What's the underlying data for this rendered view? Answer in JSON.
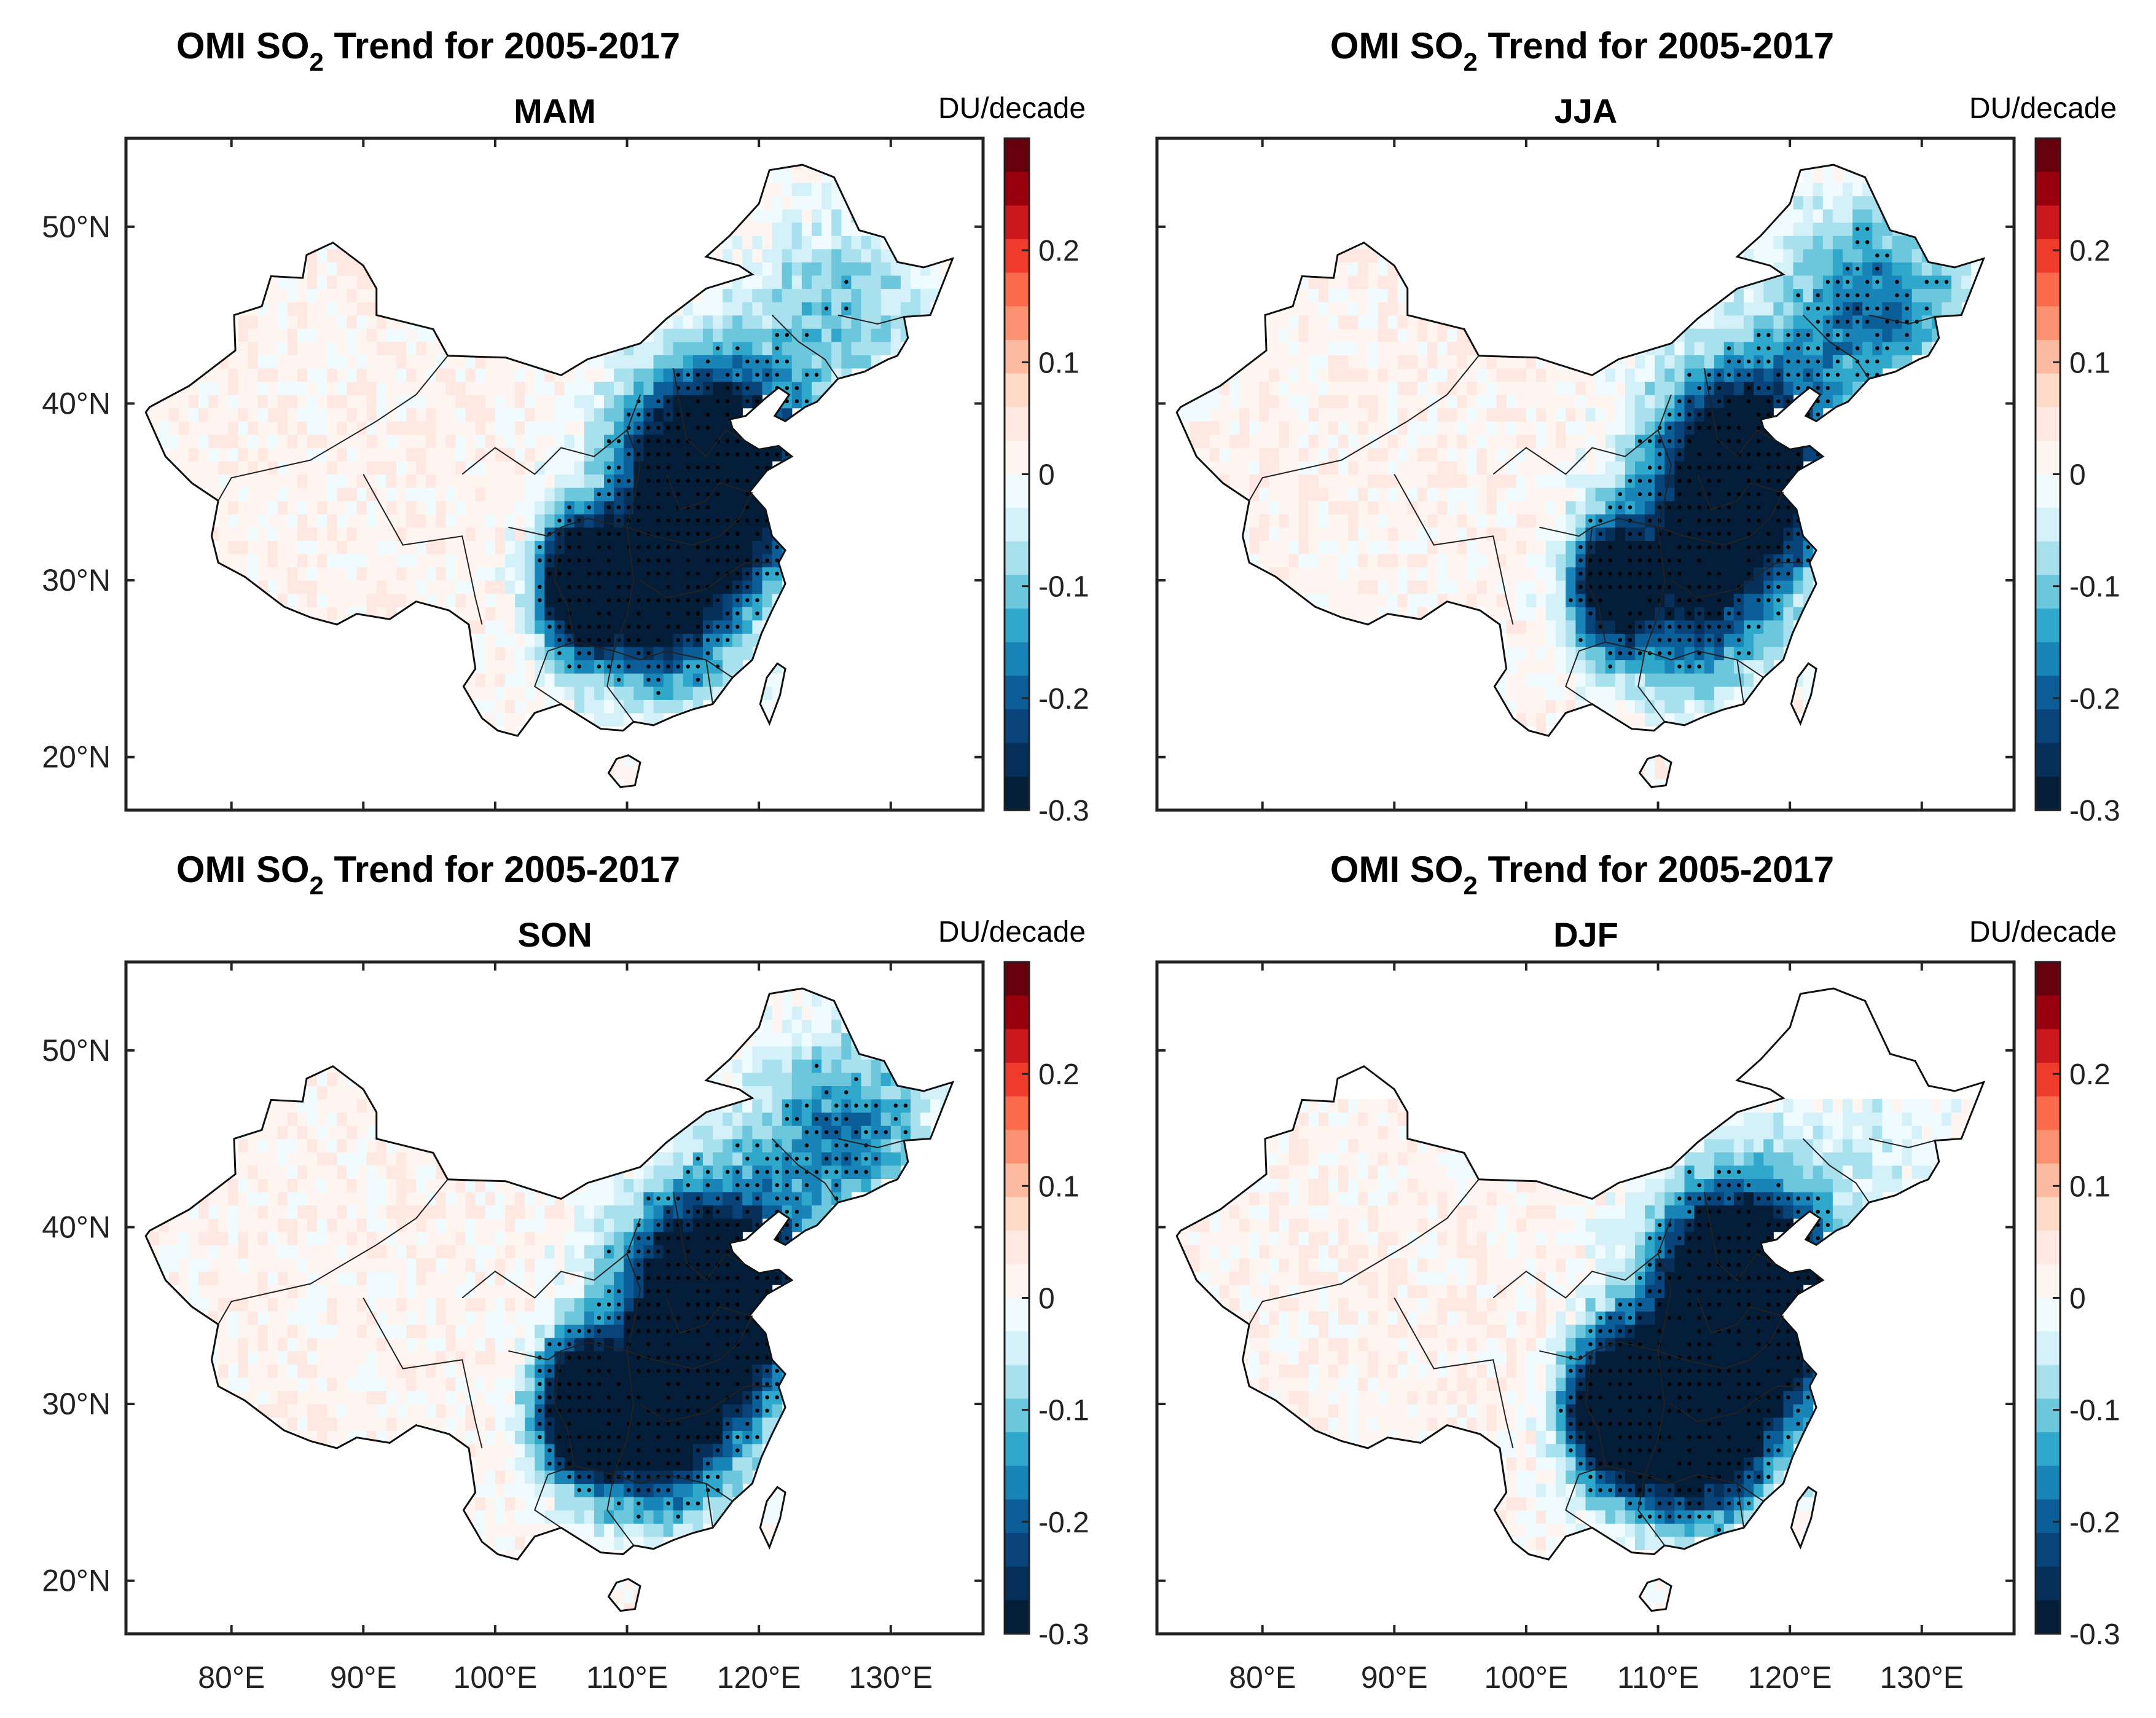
{
  "figure": {
    "title_main": "OMI SO",
    "title_sub": "2",
    "title_rest": " Trend for 2005-2017",
    "units": "DU/decade"
  },
  "panels": [
    {
      "season": "MAM",
      "pattern": "mam"
    },
    {
      "season": "JJA",
      "pattern": "jja"
    },
    {
      "season": "SON",
      "pattern": "son"
    },
    {
      "season": "DJF",
      "pattern": "djf"
    }
  ],
  "axes": {
    "lon_ticks": [
      "80°E",
      "90°E",
      "100°E",
      "110°E",
      "120°E",
      "130°E"
    ],
    "lon_values": [
      80,
      90,
      100,
      110,
      120,
      130
    ],
    "lat_ticks": [
      "50°N",
      "40°N",
      "30°N",
      "20°N"
    ],
    "lat_values": [
      50,
      40,
      30,
      20
    ],
    "lon_range": [
      72,
      137
    ],
    "lat_range": [
      17,
      55
    ]
  },
  "colorbar": {
    "labels": [
      "0.2",
      "0.1",
      "0",
      "-0.1",
      "-0.2",
      "-0.3"
    ],
    "values": [
      0.2,
      0.1,
      0,
      -0.1,
      -0.2,
      -0.3
    ],
    "range": [
      -0.3,
      0.3
    ],
    "colors_top_to_bottom": [
      "#67000d",
      "#99000d",
      "#cb181d",
      "#ef3b2c",
      "#fb6a4a",
      "#fc9272",
      "#fcbba1",
      "#fddbc7",
      "#fee8e1",
      "#fff5f0",
      "#f0fbff",
      "#d4f1f9",
      "#a9e0ee",
      "#6cc7dd",
      "#2fa8cc",
      "#1884b8",
      "#0b5e98",
      "#08437a",
      "#06305a",
      "#041e3a"
    ]
  },
  "chart_data": [
    {
      "type": "heatmap",
      "title": "OMI SO2 Trend for 2005-2017",
      "subtitle": "MAM",
      "units": "DU/decade",
      "xlabel": "",
      "ylabel": "",
      "xlim": [
        72,
        137
      ],
      "ylim": [
        17,
        55
      ],
      "clim": [
        -0.3,
        0.3
      ],
      "summary": {
        "east_china_trend": -0.3,
        "tibet_xinjiang_trend": 0.02,
        "northeast_trend": -0.05,
        "sichuan_basin_trend": -0.3
      }
    },
    {
      "type": "heatmap",
      "title": "OMI SO2 Trend for 2005-2017",
      "subtitle": "JJA",
      "units": "DU/decade",
      "xlabel": "",
      "ylabel": "",
      "xlim": [
        72,
        137
      ],
      "ylim": [
        17,
        55
      ],
      "clim": [
        -0.3,
        0.3
      ],
      "summary": {
        "east_china_trend": -0.3,
        "tibet_xinjiang_trend": 0.02,
        "northeast_trend": -0.15,
        "sichuan_basin_trend": -0.25
      }
    },
    {
      "type": "heatmap",
      "title": "OMI SO2 Trend for 2005-2017",
      "subtitle": "SON",
      "units": "DU/decade",
      "xlabel": "",
      "ylabel": "",
      "xlim": [
        72,
        137
      ],
      "ylim": [
        17,
        55
      ],
      "clim": [
        -0.3,
        0.3
      ],
      "summary": {
        "east_china_trend": -0.3,
        "tibet_xinjiang_trend": 0.02,
        "northeast_trend": -0.1,
        "sichuan_basin_trend": -0.3
      }
    },
    {
      "type": "heatmap",
      "title": "OMI SO2 Trend for 2005-2017",
      "subtitle": "DJF",
      "units": "DU/decade",
      "xlabel": "",
      "ylabel": "",
      "xlim": [
        72,
        137
      ],
      "ylim": [
        17,
        55
      ],
      "clim": [
        -0.3,
        0.3
      ],
      "summary": {
        "east_china_trend": -0.3,
        "tibet_xinjiang_trend": 0.03,
        "northeast_trend": 0.0,
        "sichuan_basin_trend": -0.3
      }
    }
  ]
}
